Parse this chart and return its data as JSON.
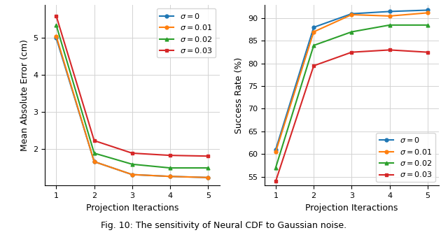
{
  "iterations": [
    1,
    2,
    3,
    4,
    5
  ],
  "left_ylabel": "Mean Absolute Error (cm)",
  "right_ylabel": "Success Rate (%)",
  "xlabel": "Projection Iteractions",
  "left_series": {
    "sigma_0": [
      5.0,
      1.65,
      1.3,
      1.25,
      1.22
    ],
    "sigma_001": [
      5.05,
      1.65,
      1.3,
      1.25,
      1.22
    ],
    "sigma_002": [
      5.35,
      1.88,
      1.58,
      1.48,
      1.48
    ],
    "sigma_003": [
      5.6,
      2.22,
      1.88,
      1.82,
      1.8
    ]
  },
  "right_series": {
    "sigma_0": [
      61.0,
      88.0,
      91.0,
      91.5,
      91.8
    ],
    "sigma_001": [
      60.5,
      87.0,
      90.8,
      90.5,
      91.2
    ],
    "sigma_002": [
      57.0,
      84.0,
      87.0,
      88.5,
      88.5
    ],
    "sigma_003": [
      54.0,
      79.5,
      82.5,
      83.0,
      82.5
    ]
  },
  "colors": {
    "sigma_0": "#1f77b4",
    "sigma_001": "#ff7f0e",
    "sigma_002": "#2ca02c",
    "sigma_003": "#d62728"
  },
  "legend_labels": {
    "sigma_0": "$\\sigma = 0$",
    "sigma_001": "$\\sigma = 0.01$",
    "sigma_002": "$\\sigma = 0.02$",
    "sigma_003": "$\\sigma = 0.03$"
  },
  "left_ylim": [
    1.0,
    5.9
  ],
  "left_yticks": [
    2,
    3,
    4,
    5
  ],
  "right_ylim": [
    53.0,
    93.0
  ],
  "right_yticks": [
    55,
    60,
    65,
    70,
    75,
    80,
    85,
    90
  ],
  "markers": {
    "sigma_0": "o",
    "sigma_001": "o",
    "sigma_002": "^",
    "sigma_003": "s"
  },
  "caption": "Fig. 10: The sensitivity of Neural CDF to Gaussian noise.",
  "figure_width": 6.4,
  "figure_height": 3.36,
  "dpi": 100
}
